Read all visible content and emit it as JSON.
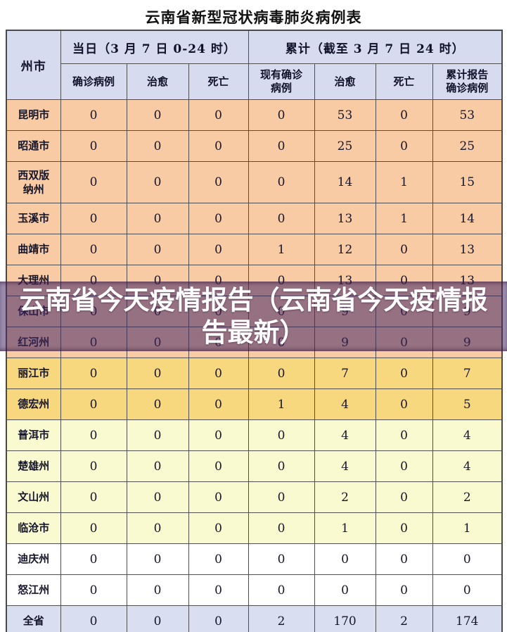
{
  "title": "云南省新型冠状病毒肺炎病例表",
  "overlay": {
    "full_text": "云南省今天疫情报告（云南省今天疫情报告最新）",
    "lines": [
      "云南省今天疫情报告（云南省今天疫情报",
      "告最新）"
    ]
  },
  "table": {
    "corner_header": "州市",
    "group_headers": [
      {
        "label": "当日（3 月 7 日 0-24 时）"
      },
      {
        "label": "累计（截至 3 月 7 日 24 时）"
      }
    ],
    "sub_headers": [
      "确诊病例",
      "治愈",
      "死亡",
      "现有确诊\n病例",
      "治愈",
      "死亡",
      "累计报告\n确诊病例"
    ],
    "rows": [
      {
        "label": "昆明市",
        "values": [
          0,
          0,
          0,
          0,
          53,
          0,
          53
        ],
        "style": "peach",
        "tall": false
      },
      {
        "label": "昭通市",
        "values": [
          0,
          0,
          0,
          0,
          25,
          0,
          25
        ],
        "style": "peach",
        "tall": false
      },
      {
        "label": "西双版\n纳州",
        "values": [
          0,
          0,
          0,
          0,
          14,
          1,
          15
        ],
        "style": "peach",
        "tall": true
      },
      {
        "label": "玉溪市",
        "values": [
          0,
          0,
          0,
          0,
          13,
          1,
          14
        ],
        "style": "peach",
        "tall": false
      },
      {
        "label": "曲靖市",
        "values": [
          0,
          0,
          0,
          1,
          12,
          0,
          13
        ],
        "style": "peach",
        "tall": false
      },
      {
        "label": "大理州",
        "values": [
          0,
          0,
          0,
          0,
          13,
          0,
          13
        ],
        "style": "peach",
        "tall": false
      },
      {
        "label": "保山市",
        "values": [
          0,
          0,
          0,
          0,
          9,
          0,
          9
        ],
        "style": "peach",
        "tall": false
      },
      {
        "label": "红河州",
        "values": [
          0,
          0,
          0,
          0,
          9,
          0,
          9
        ],
        "style": "peach",
        "tall": false
      },
      {
        "label": "丽江市",
        "values": [
          0,
          0,
          0,
          0,
          7,
          0,
          7
        ],
        "style": "gold",
        "tall": false
      },
      {
        "label": "德宏州",
        "values": [
          0,
          0,
          0,
          1,
          4,
          0,
          5
        ],
        "style": "gold",
        "tall": false
      },
      {
        "label": "普洱市",
        "values": [
          0,
          0,
          0,
          0,
          4,
          0,
          4
        ],
        "style": "lightyellow",
        "tall": false
      },
      {
        "label": "楚雄州",
        "values": [
          0,
          0,
          0,
          0,
          4,
          0,
          4
        ],
        "style": "lightyellow",
        "tall": false
      },
      {
        "label": "文山州",
        "values": [
          0,
          0,
          0,
          0,
          2,
          0,
          2
        ],
        "style": "lightyellow",
        "tall": false
      },
      {
        "label": "临沧市",
        "values": [
          0,
          0,
          0,
          0,
          1,
          0,
          1
        ],
        "style": "lightyellow",
        "tall": false
      },
      {
        "label": "迪庆州",
        "values": [
          0,
          0,
          0,
          0,
          0,
          0,
          0
        ],
        "style": "white",
        "tall": false
      },
      {
        "label": "怒江州",
        "values": [
          0,
          0,
          0,
          0,
          0,
          0,
          0
        ],
        "style": "white",
        "tall": false
      },
      {
        "label": "全省",
        "values": [
          0,
          0,
          0,
          2,
          170,
          2,
          174
        ],
        "style": "total",
        "tall": false
      }
    ]
  },
  "colors": {
    "header_bg": "#d6dbef",
    "peach": "#f8cba5",
    "gold": "#f7d87f",
    "lightyellow": "#fafad0",
    "total_bg": "#d9def1",
    "overlay_bg": "rgba(70,40,100,0.55)",
    "border": "#4f4f4f"
  }
}
